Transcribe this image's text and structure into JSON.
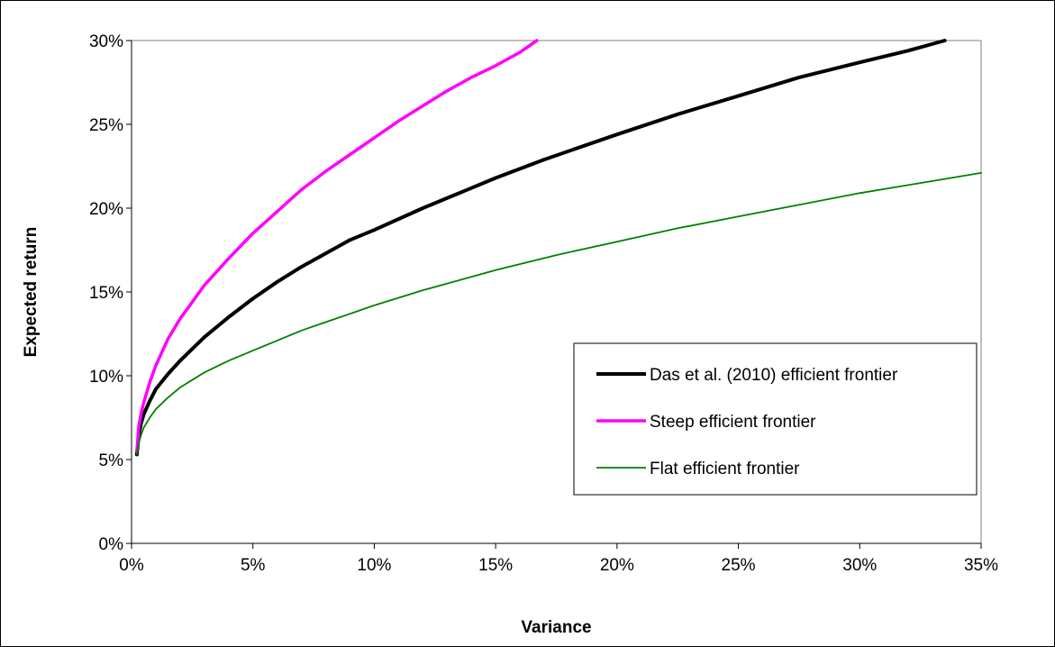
{
  "chart_data": {
    "type": "line",
    "xlabel": "Variance",
    "ylabel": "Expected return",
    "xlim": [
      0,
      0.35
    ],
    "ylim": [
      0,
      0.3
    ],
    "x_ticks": [
      0,
      0.05,
      0.1,
      0.15,
      0.2,
      0.25,
      0.3,
      0.35
    ],
    "x_tick_labels": [
      "0%",
      "5%",
      "10%",
      "15%",
      "20%",
      "25%",
      "30%",
      "35%"
    ],
    "y_ticks": [
      0,
      0.05,
      0.1,
      0.15,
      0.2,
      0.25,
      0.3
    ],
    "y_tick_labels": [
      "0%",
      "5%",
      "10%",
      "15%",
      "20%",
      "25%",
      "30%"
    ],
    "grid": false,
    "legend_position": "lower-right",
    "series": [
      {
        "name": "Das et al. (2010) efficient frontier",
        "color": "#000000",
        "x": [
          0.0022,
          0.003,
          0.004,
          0.005,
          0.0075,
          0.01,
          0.015,
          0.02,
          0.025,
          0.03,
          0.04,
          0.05,
          0.06,
          0.07,
          0.08,
          0.09,
          0.1,
          0.12,
          0.14,
          0.15,
          0.17,
          0.2,
          0.225,
          0.25,
          0.275,
          0.3,
          0.32,
          0.335
        ],
        "y": [
          0.053,
          0.065,
          0.072,
          0.077,
          0.085,
          0.092,
          0.101,
          0.109,
          0.116,
          0.123,
          0.135,
          0.146,
          0.156,
          0.165,
          0.173,
          0.181,
          0.187,
          0.2,
          0.212,
          0.218,
          0.229,
          0.244,
          0.256,
          0.267,
          0.278,
          0.287,
          0.294,
          0.3
        ]
      },
      {
        "name": "Steep efficient frontier",
        "color": "#ff00ff",
        "x": [
          0.0022,
          0.003,
          0.004,
          0.005,
          0.0075,
          0.01,
          0.015,
          0.02,
          0.025,
          0.03,
          0.04,
          0.05,
          0.06,
          0.07,
          0.08,
          0.09,
          0.1,
          0.11,
          0.12,
          0.13,
          0.14,
          0.15,
          0.16,
          0.167
        ],
        "y": [
          0.055,
          0.07,
          0.078,
          0.084,
          0.096,
          0.106,
          0.122,
          0.134,
          0.144,
          0.154,
          0.17,
          0.185,
          0.198,
          0.211,
          0.222,
          0.232,
          0.242,
          0.252,
          0.261,
          0.27,
          0.278,
          0.285,
          0.293,
          0.3
        ]
      },
      {
        "name": "Flat efficient frontier",
        "color": "#008000",
        "x": [
          0.0022,
          0.003,
          0.004,
          0.005,
          0.0075,
          0.01,
          0.015,
          0.02,
          0.03,
          0.04,
          0.05,
          0.06,
          0.07,
          0.08,
          0.1,
          0.12,
          0.15,
          0.175,
          0.2,
          0.225,
          0.25,
          0.275,
          0.3,
          0.325,
          0.35
        ],
        "y": [
          0.053,
          0.06,
          0.065,
          0.069,
          0.075,
          0.08,
          0.087,
          0.093,
          0.102,
          0.109,
          0.115,
          0.121,
          0.127,
          0.132,
          0.142,
          0.151,
          0.163,
          0.172,
          0.18,
          0.188,
          0.195,
          0.202,
          0.209,
          0.215,
          0.221
        ]
      }
    ]
  }
}
